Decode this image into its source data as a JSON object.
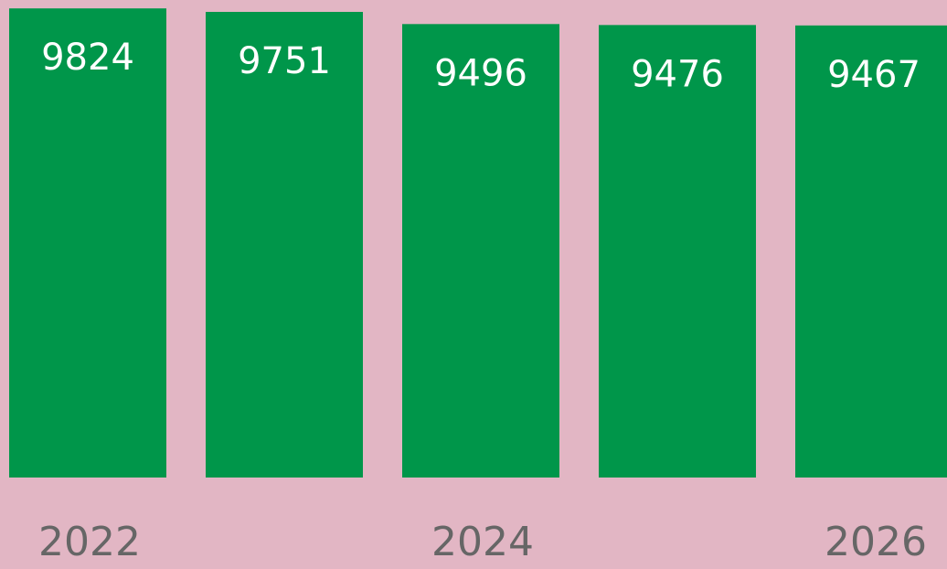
{
  "chart_data": {
    "type": "bar",
    "categories": [
      "2022",
      null,
      "2024",
      null,
      "2026"
    ],
    "values": [
      9824,
      9751,
      9496,
      9476,
      9467
    ],
    "color": "#00964a",
    "ylim": [
      0,
      10000
    ]
  }
}
